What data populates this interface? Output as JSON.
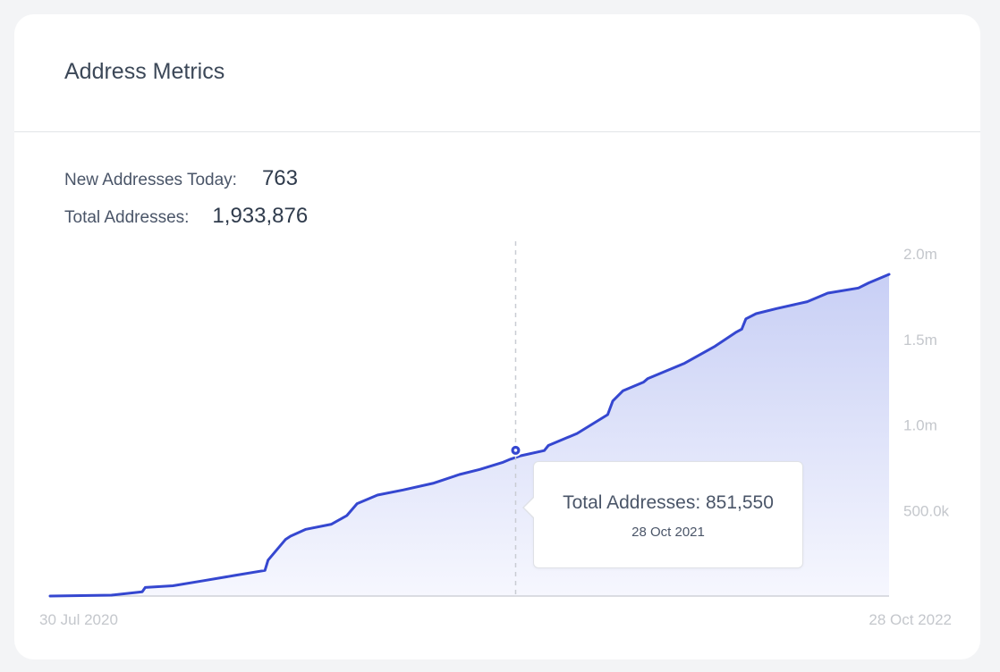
{
  "card": {
    "title": "Address Metrics",
    "new_label": "New Addresses Today:",
    "new_value": "763",
    "total_label": "Total Addresses:",
    "total_value": "1,933,876"
  },
  "tooltip": {
    "text": "Total Addresses: 851,550",
    "date": "28 Oct 2021"
  },
  "colors": {
    "line": "#3547d0",
    "fill_top": "#c8cff5",
    "fill_bottom": "#f6f7fe",
    "axis": "#cfd2d8",
    "tick": "#c4c7cc"
  },
  "chart_data": {
    "type": "area",
    "title": "Address Metrics",
    "series": [
      {
        "name": "Total Addresses",
        "x": [
          0,
          60,
          90,
          93,
          120,
          150,
          180,
          210,
          213,
          230,
          235,
          250,
          275,
          290,
          300,
          320,
          345,
          375,
          380,
          400,
          420,
          442,
          450,
          460,
          483,
          487,
          515,
          545,
          550,
          560,
          580,
          584,
          620,
          650,
          670,
          676,
          680,
          690,
          710,
          740,
          760,
          790,
          800,
          820
        ],
        "values": [
          0,
          5000,
          25000,
          50000,
          60000,
          90000,
          120000,
          150000,
          210000,
          330000,
          350000,
          390000,
          420000,
          470000,
          540000,
          590000,
          620000,
          660000,
          670000,
          710000,
          740000,
          780000,
          800000,
          820000,
          850000,
          880000,
          950000,
          1060000,
          1140000,
          1200000,
          1250000,
          1270000,
          1360000,
          1460000,
          1540000,
          1560000,
          1620000,
          1650000,
          1680000,
          1720000,
          1770000,
          1800000,
          1830000,
          1880000
        ]
      }
    ],
    "x_range": [
      0,
      820
    ],
    "ylim": [
      0,
      2000000
    ],
    "yticks": [
      500000,
      1000000,
      1500000,
      2000000
    ],
    "ytick_labels": [
      "500.0k",
      "1.0m",
      "1.5m",
      "2.0m"
    ],
    "xtick_labels": [
      "30 Jul 2020",
      "28 Oct 2022"
    ],
    "highlight": {
      "x": 455,
      "value": 851550,
      "date": "28 Oct 2021"
    }
  }
}
